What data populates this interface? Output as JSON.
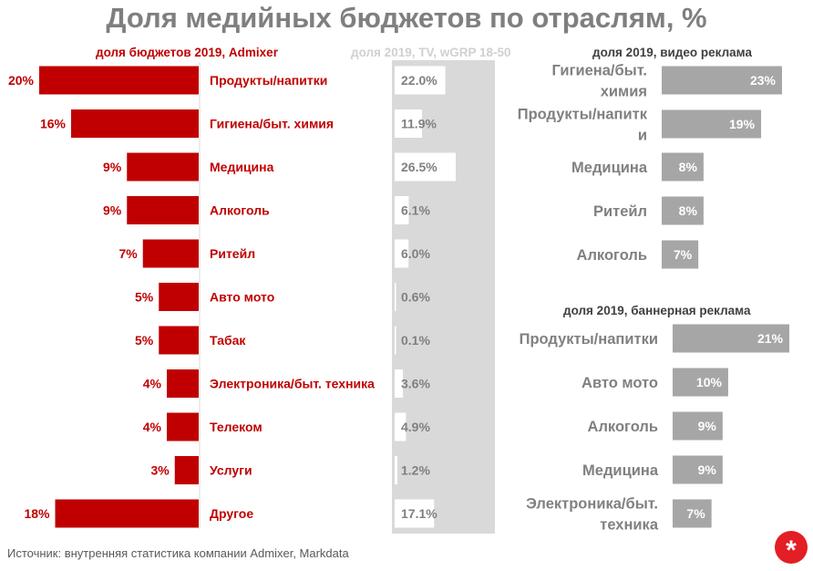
{
  "title": "Доля медийных бюджетов по отраслям, %",
  "source_text": "Источник: внутренняя статистика компании Admixer, Markdata",
  "logo_glyph": "*",
  "colors": {
    "red": "#c00000",
    "gray_bar": "#a6a6a6",
    "tv_panel": "#d9d9d9",
    "tv_bar": "#ffffff",
    "label_gray": "#808080"
  },
  "chart_data": [
    {
      "type": "bar",
      "orientation": "horizontal",
      "title": "доля бюджетов 2019, Admixer",
      "categories": [
        "Продукты/напитки",
        "Гигиена/быт. химия",
        "Медицина",
        "Алкоголь",
        "Ритейл",
        "Авто мото",
        "Табак",
        "Электроника/быт. техника",
        "Телеком",
        "Услуги",
        "Другое"
      ],
      "values": [
        20,
        16,
        9,
        9,
        7,
        5,
        5,
        4,
        4,
        3,
        18
      ],
      "value_labels": [
        "20%",
        "16%",
        "9%",
        "9%",
        "7%",
        "5%",
        "5%",
        "4%",
        "4%",
        "3%",
        "18%"
      ],
      "xlim": [
        0,
        21
      ],
      "direction": "right-to-left"
    },
    {
      "type": "bar",
      "orientation": "horizontal",
      "title": "доля 2019, TV, wGRP 18-50",
      "categories": [
        "Продукты/напитки",
        "Гигиена/быт. химия",
        "Медицина",
        "Алкоголь",
        "Ритейл",
        "Авто мото",
        "Табак",
        "Электроника/быт. техника",
        "Телеком",
        "Услуги",
        "Другое"
      ],
      "values": [
        22.0,
        11.9,
        26.5,
        6.1,
        6.0,
        0.6,
        0.1,
        3.6,
        4.9,
        1.2,
        17.1
      ],
      "value_labels": [
        "22.0%",
        "11.9%",
        "26.5%",
        "6.1%",
        "6.0%",
        "0.6%",
        "0.1%",
        "3.6%",
        "4.9%",
        "1.2%",
        "17.1%"
      ],
      "xlim": [
        0,
        28
      ]
    },
    {
      "type": "bar",
      "orientation": "horizontal",
      "title": "доля 2019, видео реклама",
      "categories": [
        [
          "Гигиена/быт.",
          "химия"
        ],
        [
          "Продукты/напитк",
          "и"
        ],
        [
          "Медицина"
        ],
        [
          "Ритейл"
        ],
        [
          "Алкоголь"
        ]
      ],
      "values": [
        23,
        19,
        8,
        8,
        7
      ],
      "value_labels": [
        "23%",
        "19%",
        "8%",
        "8%",
        "7%"
      ],
      "xlim": [
        0,
        23
      ]
    },
    {
      "type": "bar",
      "orientation": "horizontal",
      "title": "доля 2019, баннерная реклама",
      "categories": [
        [
          "Продукты/напитки"
        ],
        [
          "Авто мото"
        ],
        [
          "Алкоголь"
        ],
        [
          "Медицина"
        ],
        [
          "Электроника/быт.",
          "техника"
        ]
      ],
      "values": [
        21,
        10,
        9,
        9,
        7
      ],
      "value_labels": [
        "21%",
        "10%",
        "9%",
        "9%",
        "7%"
      ],
      "xlim": [
        0,
        21
      ]
    }
  ]
}
